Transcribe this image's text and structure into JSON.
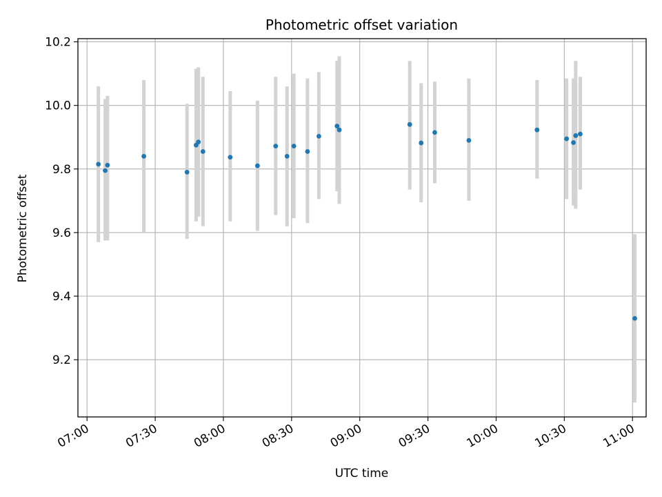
{
  "chart_data": {
    "type": "scatter",
    "title": "Photometric offset variation",
    "xlabel": "UTC time",
    "ylabel": "Photometric offset",
    "x_axis_kind": "time",
    "x_tick_labels": [
      "07:00",
      "07:30",
      "08:00",
      "08:30",
      "09:00",
      "09:30",
      "10:00",
      "10:30",
      "11:00"
    ],
    "xlim": [
      "06:56",
      "11:06"
    ],
    "ylim": [
      9.02,
      10.21
    ],
    "y_ticks": [
      9.2,
      9.4,
      9.6,
      9.8,
      10.0,
      10.2
    ],
    "y_tick_labels": [
      "9.2",
      "9.4",
      "9.6",
      "9.8",
      "10.0",
      "10.2"
    ],
    "grid": true,
    "colors": {
      "point": "#1f77b4",
      "errorbar": "#d3d3d3",
      "grid": "#b0b0b0"
    },
    "series": [
      {
        "points": [
          {
            "x": "07:05",
            "y": 9.815,
            "ymin": 9.57,
            "ymax": 10.06
          },
          {
            "x": "07:08",
            "y": 9.795,
            "ymin": 9.575,
            "ymax": 10.02
          },
          {
            "x": "07:09",
            "y": 9.812,
            "ymin": 9.575,
            "ymax": 10.03
          },
          {
            "x": "07:25",
            "y": 9.84,
            "ymin": 9.6,
            "ymax": 10.08
          },
          {
            "x": "07:44",
            "y": 9.79,
            "ymin": 9.58,
            "ymax": 10.005
          },
          {
            "x": "07:48",
            "y": 9.875,
            "ymin": 9.635,
            "ymax": 10.115
          },
          {
            "x": "07:49",
            "y": 9.885,
            "ymin": 9.65,
            "ymax": 10.12
          },
          {
            "x": "07:51",
            "y": 9.855,
            "ymin": 9.62,
            "ymax": 10.09
          },
          {
            "x": "08:03",
            "y": 9.837,
            "ymin": 9.635,
            "ymax": 10.045
          },
          {
            "x": "08:15",
            "y": 9.81,
            "ymin": 9.605,
            "ymax": 10.015
          },
          {
            "x": "08:23",
            "y": 9.872,
            "ymin": 9.655,
            "ymax": 10.09
          },
          {
            "x": "08:28",
            "y": 9.84,
            "ymin": 9.62,
            "ymax": 10.06
          },
          {
            "x": "08:31",
            "y": 9.872,
            "ymin": 9.645,
            "ymax": 10.1
          },
          {
            "x": "08:37",
            "y": 9.855,
            "ymin": 9.63,
            "ymax": 10.085
          },
          {
            "x": "08:42",
            "y": 9.903,
            "ymin": 9.705,
            "ymax": 10.105
          },
          {
            "x": "08:50",
            "y": 9.935,
            "ymin": 9.73,
            "ymax": 10.14
          },
          {
            "x": "08:51",
            "y": 9.923,
            "ymin": 9.69,
            "ymax": 10.155
          },
          {
            "x": "09:22",
            "y": 9.94,
            "ymin": 9.735,
            "ymax": 10.14
          },
          {
            "x": "09:27",
            "y": 9.882,
            "ymin": 9.695,
            "ymax": 10.07
          },
          {
            "x": "09:33",
            "y": 9.915,
            "ymin": 9.755,
            "ymax": 10.075
          },
          {
            "x": "09:48",
            "y": 9.89,
            "ymin": 9.7,
            "ymax": 10.085
          },
          {
            "x": "10:18",
            "y": 9.923,
            "ymin": 9.77,
            "ymax": 10.08
          },
          {
            "x": "10:31",
            "y": 9.895,
            "ymin": 9.705,
            "ymax": 10.085
          },
          {
            "x": "10:34",
            "y": 9.883,
            "ymin": 9.685,
            "ymax": 10.085
          },
          {
            "x": "10:35",
            "y": 9.905,
            "ymin": 9.675,
            "ymax": 10.14
          },
          {
            "x": "10:37",
            "y": 9.91,
            "ymin": 9.735,
            "ymax": 10.09
          },
          {
            "x": "11:01",
            "y": 9.33,
            "ymin": 9.065,
            "ymax": 9.595
          }
        ]
      }
    ]
  }
}
